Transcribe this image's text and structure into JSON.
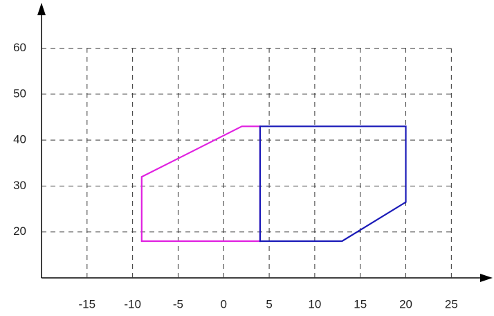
{
  "chart_data": {
    "type": "polygon",
    "series": [
      {
        "color": "#e020e0",
        "x": [
          4,
          -9,
          -9,
          2,
          4
        ],
        "y": [
          18,
          18,
          32,
          43,
          43
        ]
      },
      {
        "color": "#1a1ab8",
        "x": [
          4,
          20,
          20,
          13,
          4
        ],
        "y": [
          43,
          43,
          26.5,
          18,
          18
        ]
      }
    ],
    "xlim": [
      -20,
      29
    ],
    "ylim": [
      10,
      69
    ],
    "xticks": [
      -15,
      -10,
      -5,
      0,
      5,
      10,
      15,
      20,
      25
    ],
    "yticks": [
      20,
      30,
      40,
      50,
      60
    ],
    "grid": true
  }
}
